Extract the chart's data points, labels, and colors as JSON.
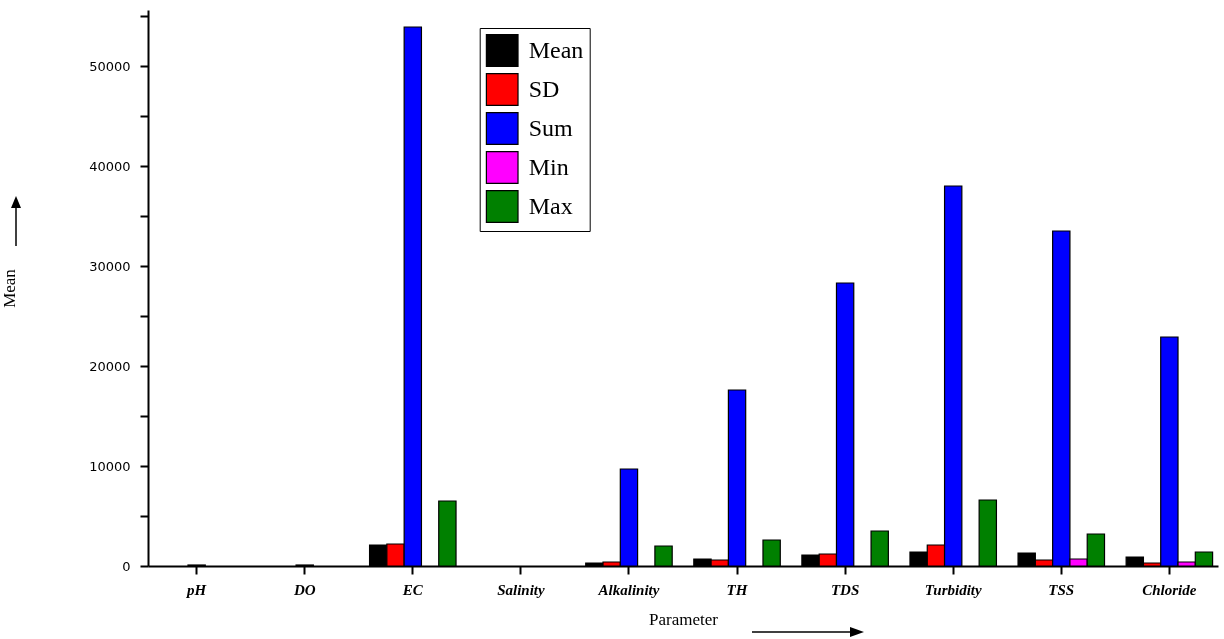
{
  "chart_data": {
    "type": "bar",
    "xlabel": "Parameter",
    "ylabel": "Mean",
    "categories": [
      "pH",
      "DO",
      "EC",
      "Salinity",
      "Alkalinity",
      "TH",
      "TDS",
      "Turbidity",
      "TSS",
      "Chloride"
    ],
    "series": [
      {
        "name": "Mean",
        "color": "#000000",
        "values": [
          0,
          0,
          2100,
          0,
          300,
          700,
          1100,
          1400,
          1300,
          900
        ]
      },
      {
        "name": "SD",
        "color": "#ff0000",
        "values": [
          0,
          0,
          2200,
          0,
          400,
          600,
          1200,
          2100,
          600,
          300
        ]
      },
      {
        "name": "Sum",
        "color": "#0000ff",
        "values": [
          100,
          100,
          53900,
          0,
          9700,
          17600,
          28300,
          38000,
          33500,
          22900
        ]
      },
      {
        "name": "Min",
        "color": "#ff00ff",
        "values": [
          0,
          0,
          0,
          0,
          0,
          0,
          0,
          0,
          700,
          400
        ]
      },
      {
        "name": "Max",
        "color": "#008000",
        "values": [
          0,
          0,
          6500,
          0,
          2000,
          2600,
          3500,
          6600,
          3200,
          1400
        ]
      }
    ],
    "ylim": [
      0,
      55600
    ],
    "yticks": [
      0,
      {
        "value": 5000,
        "label": null
      },
      10000,
      {
        "value": 15000,
        "label": null
      },
      20000,
      {
        "value": 25000,
        "label": null
      },
      30000,
      {
        "value": 35000,
        "label": null
      },
      40000,
      {
        "value": 45000,
        "label": null
      },
      50000,
      {
        "value": 55000,
        "label": null
      }
    ],
    "legend": "top",
    "grid": false
  }
}
